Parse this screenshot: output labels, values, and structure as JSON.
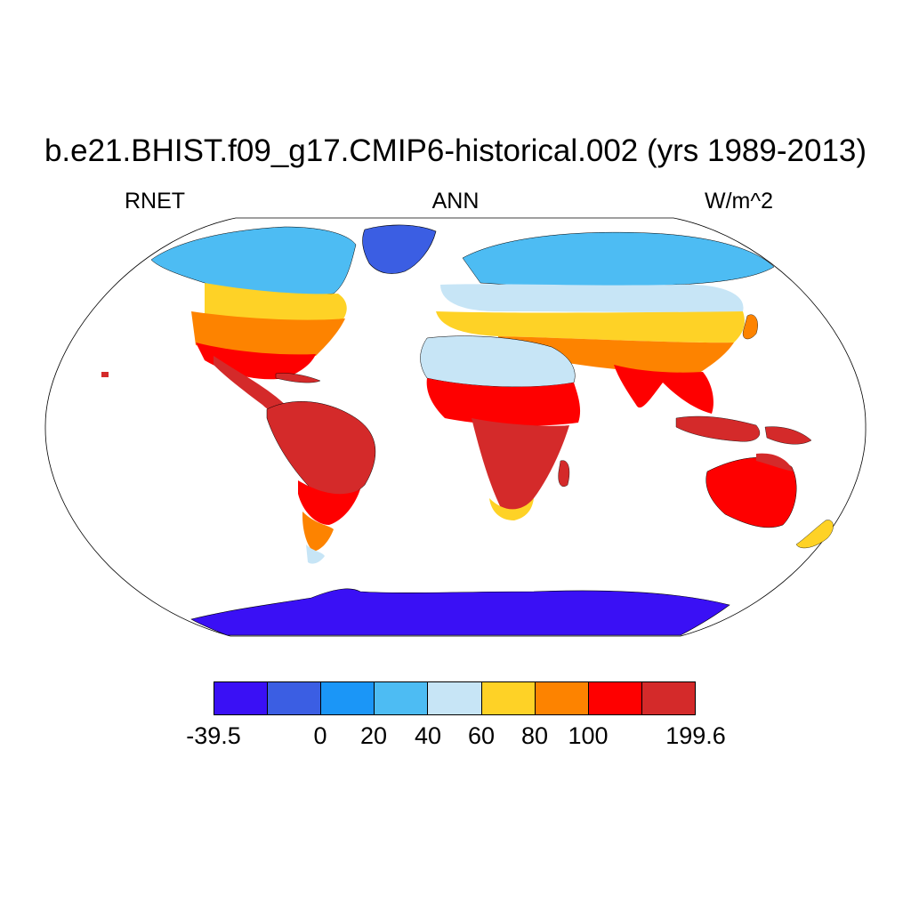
{
  "title": "b.e21.BHIST.f09_g17.CMIP6-historical.002 (yrs 1989-2013)",
  "variable": "RNET",
  "season": "ANN",
  "units": "W/m^2",
  "colorbar": {
    "colors": [
      "#3a10f5",
      "#3b5ee3",
      "#1b96f7",
      "#4dbcf3",
      "#c7e5f6",
      "#fed226",
      "#fd8300",
      "#fe0000",
      "#d42a2a"
    ],
    "labels": [
      "-39.5",
      "0",
      "20",
      "40",
      "60",
      "80",
      "100",
      "199.6"
    ]
  }
}
